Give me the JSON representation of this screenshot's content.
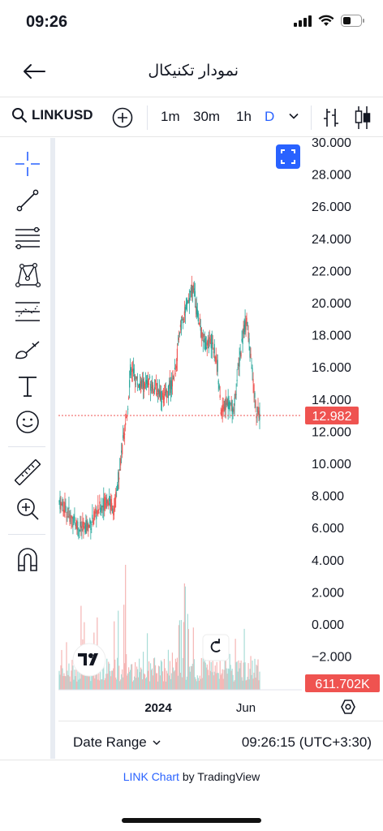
{
  "status_bar": {
    "time": "09:26"
  },
  "header": {
    "title": "نمودار تکنیکال"
  },
  "toolbar": {
    "symbol": "LINKUSD",
    "intervals": [
      {
        "label": "1m",
        "active": false
      },
      {
        "label": "30m",
        "active": false
      },
      {
        "label": "1h",
        "active": false
      },
      {
        "label": "D",
        "active": true
      }
    ]
  },
  "drawing_tools": [
    "crosshair-icon",
    "trend-line-icon",
    "fib-retracement-icon",
    "pattern-icon",
    "prediction-icon",
    "brush-icon",
    "text-icon",
    "emoji-icon",
    "ruler-icon",
    "zoom-in-icon",
    "magnet-icon"
  ],
  "chart_data": {
    "type": "candlestick",
    "y_axis_labels": [
      "30.000",
      "28.000",
      "26.000",
      "24.000",
      "22.000",
      "20.000",
      "18.000",
      "16.000",
      "14.000",
      "12.000",
      "10.000",
      "8.000",
      "6.000",
      "4.000",
      "2.000",
      "0.000",
      "−2.000"
    ],
    "ylim": [
      -2,
      30
    ],
    "x_axis_labels": [
      "2024",
      "Jun"
    ],
    "last_price": "12.982",
    "last_price_value": 12.982,
    "volume_label": "611.702K",
    "colors": {
      "up": "#26a69a",
      "down": "#ef5350",
      "price_line": "#ef5350",
      "accent": "#2962ff"
    }
  },
  "bottom": {
    "date_range_label": "Date Range",
    "clock": "09:26:15 (UTC+3:30)"
  },
  "footer": {
    "link": "LINK Chart",
    "by": " by TradingView"
  }
}
